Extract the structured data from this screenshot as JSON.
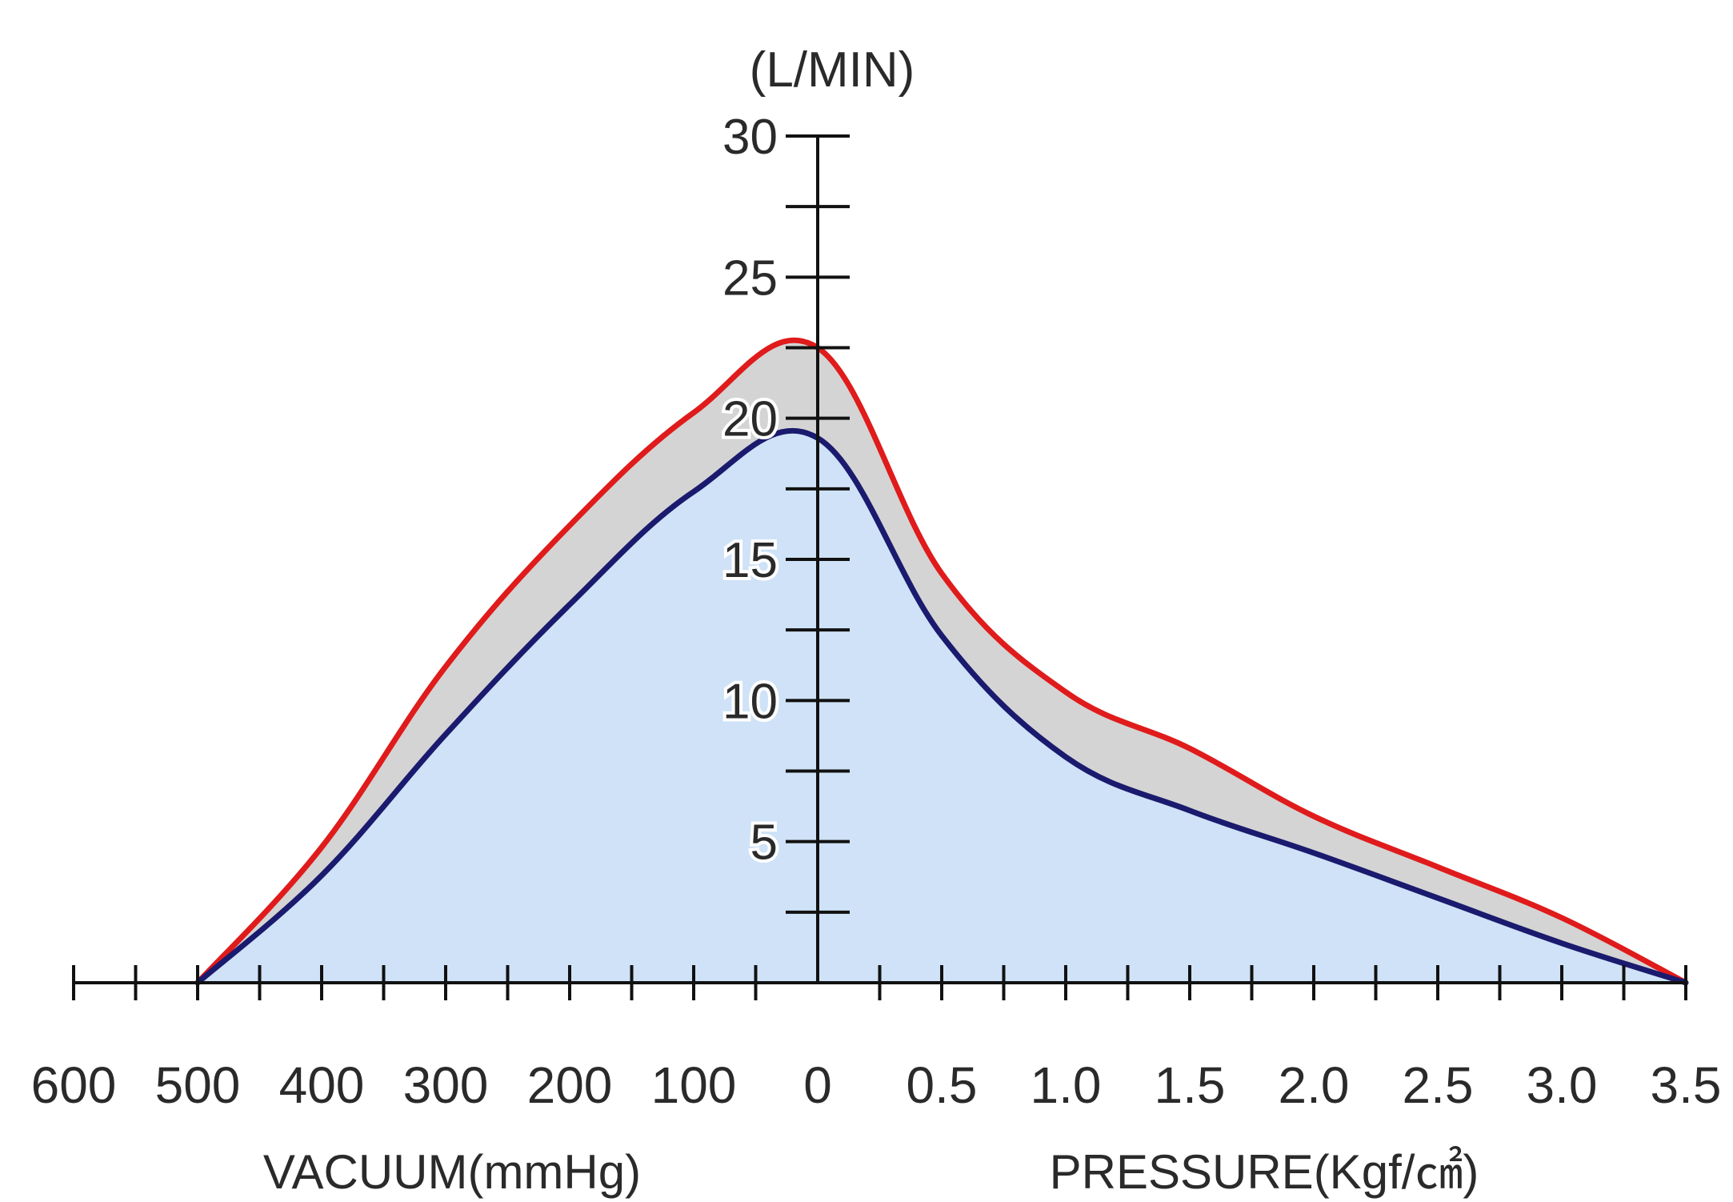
{
  "chart_data": {
    "type": "area",
    "unit_label": "(L/MIN)",
    "x_axis": {
      "vacuum_label": "VACUUM(mmHg)",
      "pressure_label": "PRESSURE(Kgf/㎠)",
      "vacuum_ticks": [
        "600",
        "500",
        "400",
        "300",
        "200",
        "100"
      ],
      "zero_label": "0",
      "pressure_ticks": [
        "0.5",
        "1.0",
        "1.5",
        "2.0",
        "2.5",
        "3.0",
        "3.5"
      ],
      "vacuum_range_mmHg": [
        600,
        0
      ],
      "pressure_range_kgf": [
        0,
        3.5
      ]
    },
    "y_axis": {
      "ylim": [
        0,
        30
      ],
      "tick_labels": [
        "5",
        "10",
        "15",
        "20",
        "25",
        "30"
      ],
      "tick_values": [
        5,
        10,
        15,
        20,
        25,
        30
      ],
      "minor_tick_values": [
        2.5,
        7.5,
        12.5,
        17.5,
        22.5,
        27.5
      ]
    },
    "series": [
      {
        "color": "#e01b1b",
        "fill": "#d4d4d4",
        "vacuum": {
          "x": [
            500,
            400,
            300,
            200,
            100,
            0
          ],
          "y": [
            0,
            4.8,
            11.2,
            16.2,
            20.2,
            22.5
          ]
        },
        "pressure": {
          "x": [
            0,
            0.5,
            1.0,
            1.5,
            2.0,
            2.5,
            3.0,
            3.5
          ],
          "y": [
            22.5,
            14.5,
            10.3,
            8.3,
            5.9,
            4.1,
            2.3,
            0
          ]
        }
      },
      {
        "color": "#1a1a6e",
        "fill": "#cfe2f7",
        "vacuum": {
          "x": [
            500,
            400,
            300,
            200,
            100,
            0
          ],
          "y": [
            0,
            3.8,
            8.8,
            13.4,
            17.4,
            19.3
          ]
        },
        "pressure": {
          "x": [
            0,
            0.5,
            1.0,
            1.5,
            2.0,
            2.5,
            3.0,
            3.5
          ],
          "y": [
            19.3,
            12.3,
            8.0,
            6.1,
            4.6,
            3.0,
            1.4,
            0
          ]
        }
      }
    ]
  }
}
